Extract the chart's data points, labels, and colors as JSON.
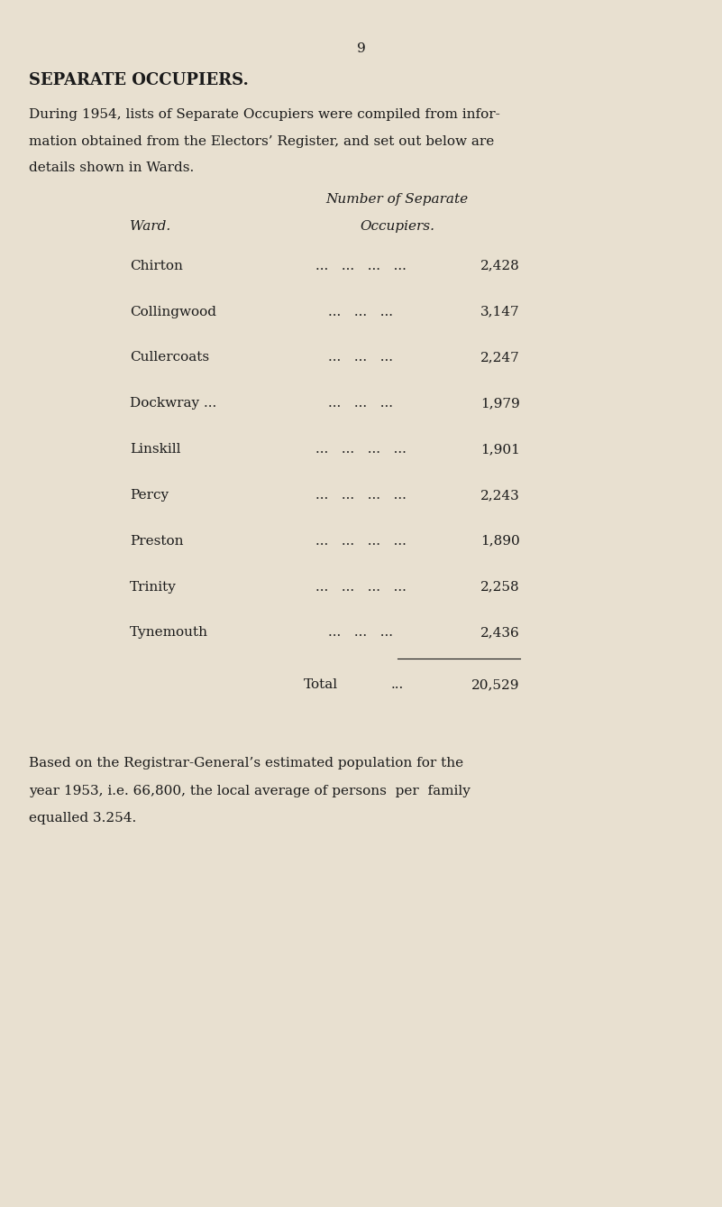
{
  "page_number": "9",
  "bg_color": "#e8e0d0",
  "title": "SEPARATE OCCUPIERS.",
  "intro_text": "During 1954, lists of Separate Occupiers were compiled from infor-\nmation obtained from the Electors’ Register, and set out below are\ndetails shown in Wards.",
  "col_header_line1": "Number of Separate",
  "col_header_line2": "Occupiers.",
  "col_ward_header": "Ward.",
  "wards": [
    "Chirton",
    "Collingwood",
    "Cullercoats",
    "Dockwray ...",
    "Linskill",
    "Percy",
    "Preston",
    "Trinity",
    "Tynemouth"
  ],
  "dots": [
    "...   ...   ...   ...",
    "...   ...   ...",
    "...   ...   ...",
    "...   ...   ...",
    "...   ...   ...   ...",
    "...   ...   ...   ...",
    "...   ...   ...   ...",
    "...   ...   ...   ...",
    "...   ...   ..."
  ],
  "values": [
    "2,428",
    "3,147",
    "2,247",
    "1,979",
    "1,901",
    "2,243",
    "1,890",
    "2,258",
    "2,436"
  ],
  "total_label": "Total",
  "total_dots": "...",
  "total_value": "20,529",
  "footer_text": "Based on the Registrar-General’s estimated population for the\nyear 1953, i.e. 66,800, the local average of persons  per  family\nequalled 3.254.",
  "text_color": "#1a1a1a",
  "font_size_title": 13,
  "font_size_body": 11,
  "font_size_page_num": 11
}
